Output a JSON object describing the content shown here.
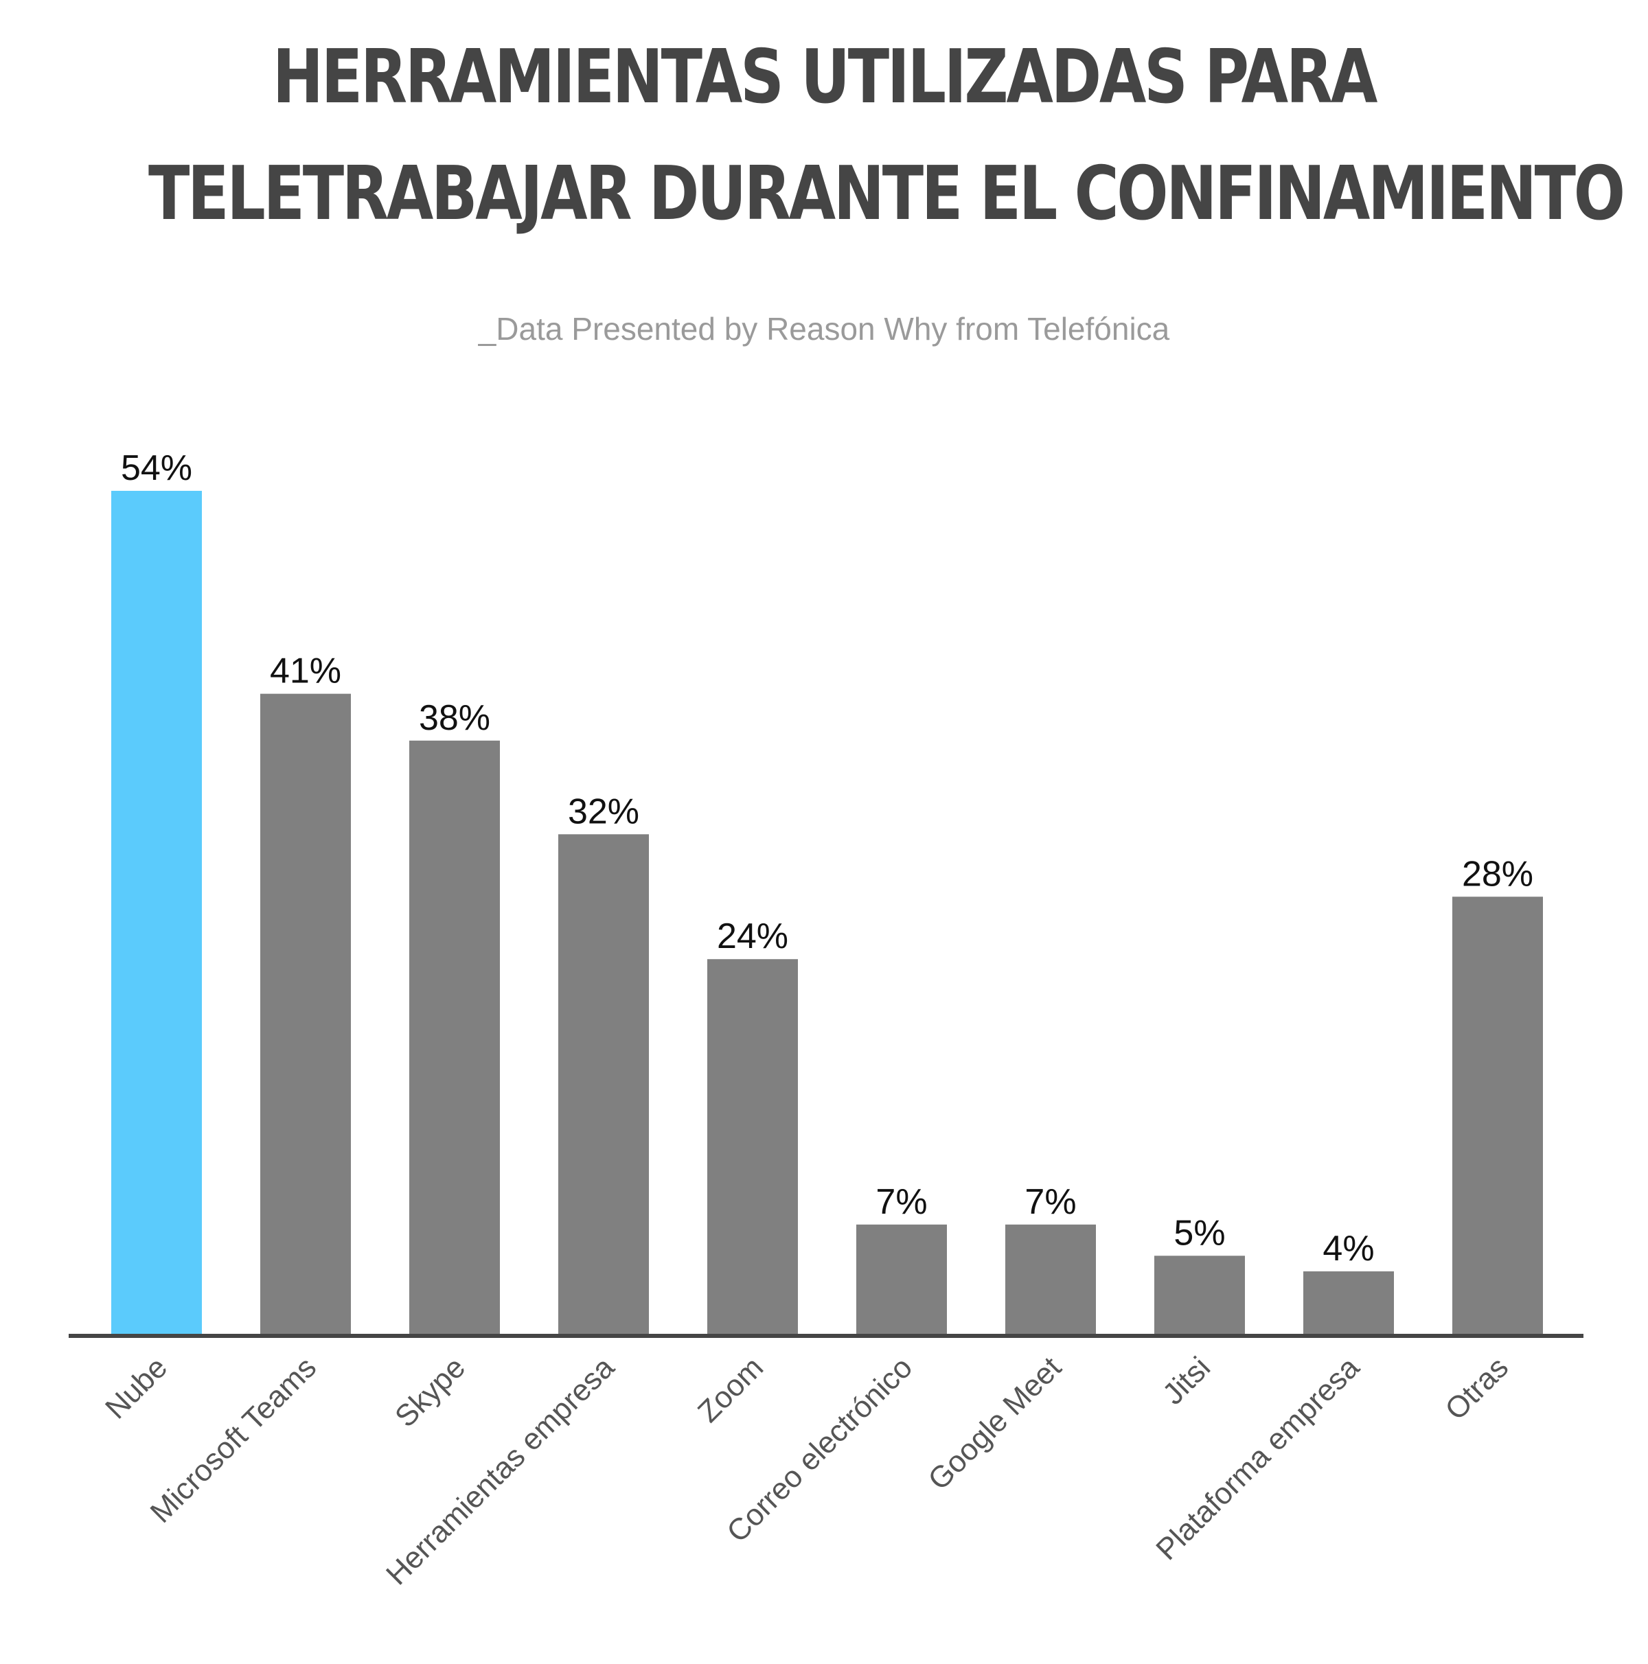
{
  "title_line1": "HERRAMIENTAS UTILIZADAS PARA",
  "title_line2": "TELETRABAJAR DURANTE EL CONFINAMIENTO",
  "subtitle": "_Data Presented by Reason Why from Telefónica",
  "colors": {
    "highlight": "#5bcbfc",
    "bar": "#808080",
    "axis": "#454545",
    "title": "#454545",
    "subtitle": "#9a9a9a"
  },
  "chart_data": {
    "type": "bar",
    "title": "HERRAMIENTAS UTILIZADAS PARA TELETRABAJAR DURANTE EL CONFINAMIENTO",
    "xlabel": "",
    "ylabel": "",
    "ylim": [
      0,
      54
    ],
    "grid": false,
    "legend": "none",
    "value_suffix": "%",
    "categories": [
      "Nube",
      "Microsoft Teams",
      "Skype",
      "Herramientas empresa",
      "Zoom",
      "Correo electrónico",
      "Google Meet",
      "Jitsi",
      "Plataforma empresa",
      "Otras"
    ],
    "values": [
      54,
      41,
      38,
      32,
      24,
      7,
      7,
      5,
      4,
      28
    ],
    "data_labels": [
      "54%",
      "41%",
      "38%",
      "32%",
      "24%",
      "7%",
      "7%",
      "5%",
      "4%",
      "28%"
    ],
    "highlighted_category": "Nube"
  }
}
